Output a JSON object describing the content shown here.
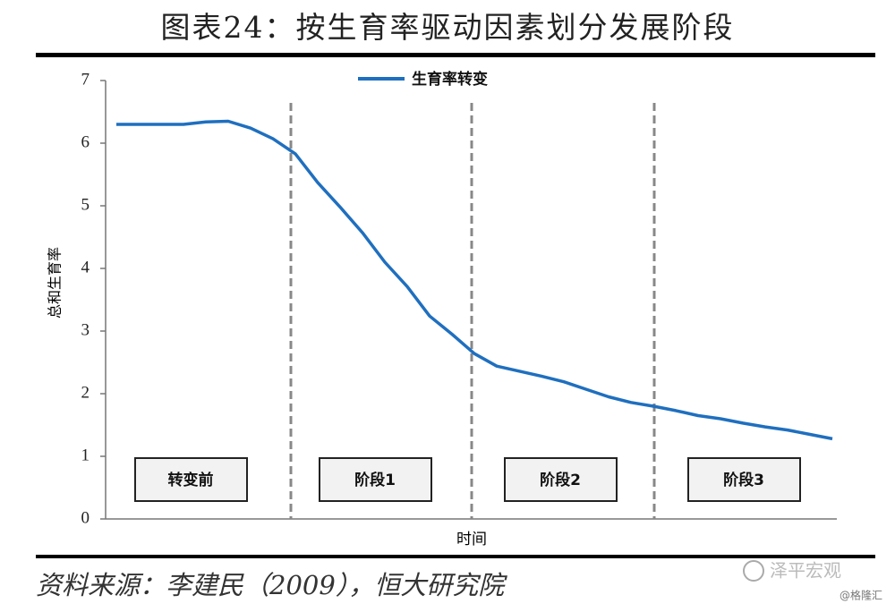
{
  "chart_data": {
    "type": "line",
    "title": "图表24：按生育率驱动因素划分发展阶段",
    "y_label": "总和生育率",
    "x_label": "时间",
    "categories": [
      null,
      null,
      null,
      null,
      null,
      null,
      null,
      null,
      null,
      null,
      null,
      null,
      null,
      null,
      null,
      null,
      null,
      null,
      null,
      null,
      null,
      null,
      null,
      null,
      null,
      null,
      null,
      null,
      null,
      null,
      null,
      null,
      null
    ],
    "series": [
      {
        "name": "生育率转变",
        "color": "#1f6fbf",
        "values": [
          6.3,
          6.3,
          6.3,
          6.3,
          6.34,
          6.35,
          6.24,
          6.07,
          5.83,
          5.37,
          4.98,
          4.57,
          4.1,
          3.71,
          3.24,
          2.95,
          2.64,
          2.44,
          2.36,
          2.28,
          2.19,
          2.07,
          1.95,
          1.86,
          1.8,
          1.73,
          1.65,
          1.6,
          1.53,
          1.47,
          1.42,
          1.35,
          1.28
        ]
      }
    ],
    "ylim": [
      0,
      7
    ],
    "yticks": [
      0,
      1,
      2,
      3,
      4,
      5,
      6,
      7
    ],
    "annotations": [
      "转变前",
      "阶段1",
      "阶段2",
      "阶段3"
    ],
    "source": "资料来源：李建民（2009），恒大研究院",
    "watermark": "泽平宏观",
    "credit": "@格隆汇"
  }
}
